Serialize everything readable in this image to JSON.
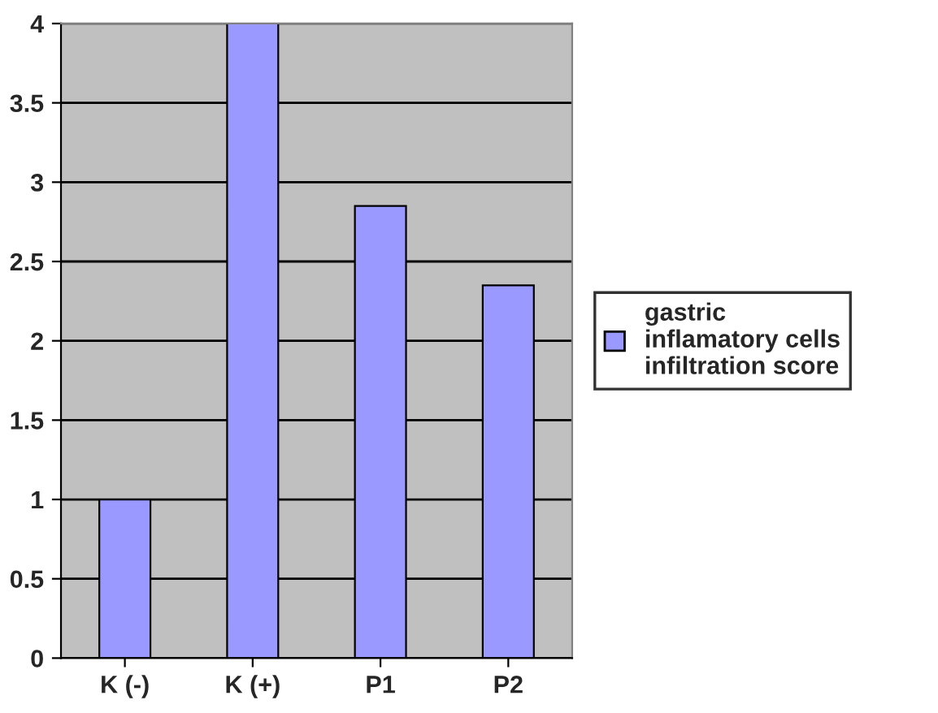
{
  "chart_data": {
    "type": "bar",
    "categories": [
      "K (-)",
      "K (+)",
      "P1",
      "P2"
    ],
    "series": [
      {
        "name": "gastric inflamatory cells infiltration score",
        "color": "#9999ff",
        "values": [
          1,
          4,
          2.85,
          2.35
        ]
      }
    ],
    "ylim": [
      0,
      4
    ],
    "yticks": [
      0,
      0.5,
      1,
      1.5,
      2,
      2.5,
      3,
      3.5,
      4
    ],
    "grid": "y",
    "legend": "right"
  }
}
